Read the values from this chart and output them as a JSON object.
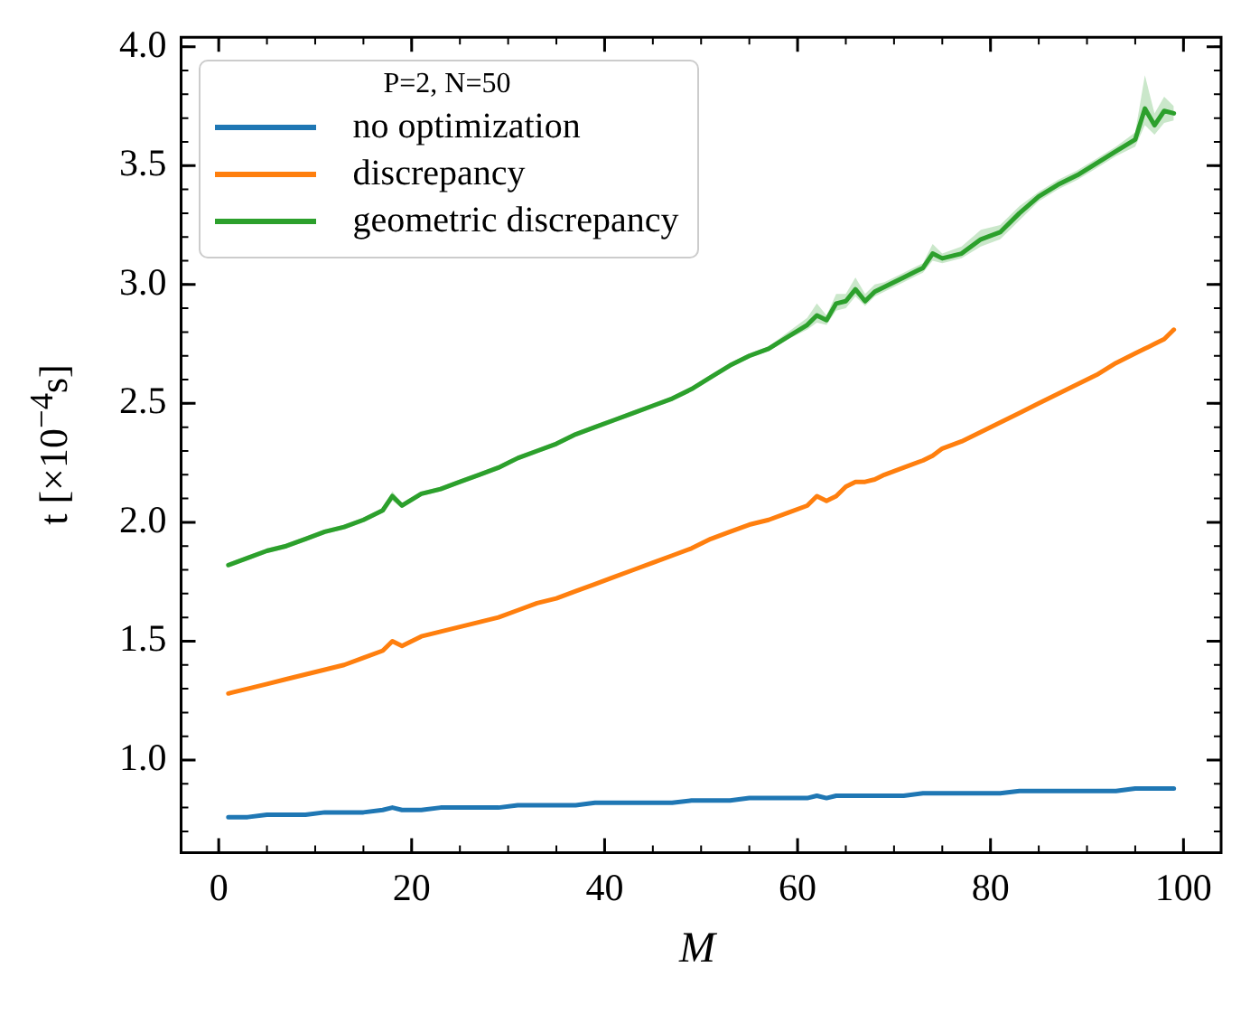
{
  "chart_data": {
    "type": "line",
    "xlabel": "M",
    "ylabel": "t [×10$^{−4}$s]",
    "legend_title": "P=2, N=50",
    "legend": "top left",
    "grid": false,
    "marker": "none",
    "line_style": "solid",
    "xlim": [
      -3.9,
      103.9
    ],
    "xticks": [
      0,
      20,
      40,
      60,
      80,
      100
    ],
    "ylim": [
      0.61,
      4.04
    ],
    "yticks": [
      {
        "value": 1,
        "label": "1.0"
      },
      {
        "value": 1.5,
        "label": "1.5"
      },
      {
        "value": 2,
        "label": "2.0"
      },
      {
        "value": 2.5,
        "label": "2.5"
      },
      {
        "value": 3,
        "label": "3.0"
      },
      {
        "value": 3.5,
        "label": "3.5"
      },
      {
        "value": 4,
        "label": "4.0"
      }
    ],
    "x": [
      1,
      3,
      5,
      7,
      9,
      11,
      13,
      15,
      17,
      18,
      19,
      21,
      23,
      25,
      27,
      29,
      31,
      33,
      35,
      37,
      39,
      41,
      43,
      45,
      47,
      49,
      51,
      53,
      55,
      57,
      59,
      61,
      62,
      63,
      64,
      65,
      66,
      67,
      68,
      69,
      71,
      73,
      74,
      75,
      77,
      79,
      81,
      83,
      85,
      87,
      89,
      91,
      93,
      95,
      96,
      97,
      98,
      99
    ],
    "series": [
      {
        "name": "no optimization",
        "color": "#1f77b4",
        "values": [
          0.76,
          0.76,
          0.77,
          0.77,
          0.77,
          0.78,
          0.78,
          0.78,
          0.79,
          0.8,
          0.79,
          0.79,
          0.8,
          0.8,
          0.8,
          0.8,
          0.81,
          0.81,
          0.81,
          0.81,
          0.82,
          0.82,
          0.82,
          0.82,
          0.82,
          0.83,
          0.83,
          0.83,
          0.84,
          0.84,
          0.84,
          0.84,
          0.85,
          0.84,
          0.85,
          0.85,
          0.85,
          0.85,
          0.85,
          0.85,
          0.85,
          0.86,
          0.86,
          0.86,
          0.86,
          0.86,
          0.86,
          0.87,
          0.87,
          0.87,
          0.87,
          0.87,
          0.87,
          0.88,
          0.88,
          0.88,
          0.88,
          0.88
        ]
      },
      {
        "name": "discrepancy",
        "color": "#ff7f0e",
        "values": [
          1.28,
          1.3,
          1.32,
          1.34,
          1.36,
          1.38,
          1.4,
          1.43,
          1.46,
          1.5,
          1.48,
          1.52,
          1.54,
          1.56,
          1.58,
          1.6,
          1.63,
          1.66,
          1.68,
          1.71,
          1.74,
          1.77,
          1.8,
          1.83,
          1.86,
          1.89,
          1.93,
          1.96,
          1.99,
          2.01,
          2.04,
          2.07,
          2.11,
          2.09,
          2.11,
          2.15,
          2.17,
          2.17,
          2.18,
          2.2,
          2.23,
          2.26,
          2.28,
          2.31,
          2.34,
          2.38,
          2.42,
          2.46,
          2.5,
          2.54,
          2.58,
          2.62,
          2.67,
          2.71,
          2.73,
          2.75,
          2.77,
          2.81
        ]
      },
      {
        "name": "geometric discrepancy",
        "color": "#2ca02c",
        "values": [
          1.82,
          1.85,
          1.88,
          1.9,
          1.93,
          1.96,
          1.98,
          2.01,
          2.05,
          2.11,
          2.07,
          2.12,
          2.14,
          2.17,
          2.2,
          2.23,
          2.27,
          2.3,
          2.33,
          2.37,
          2.4,
          2.43,
          2.46,
          2.49,
          2.52,
          2.56,
          2.61,
          2.66,
          2.7,
          2.73,
          2.78,
          2.83,
          2.87,
          2.85,
          2.92,
          2.93,
          2.98,
          2.93,
          2.97,
          2.99,
          3.03,
          3.07,
          3.13,
          3.11,
          3.13,
          3.19,
          3.22,
          3.3,
          3.37,
          3.42,
          3.46,
          3.51,
          3.56,
          3.61,
          3.74,
          3.67,
          3.73,
          3.72
        ],
        "lower": [
          1.81,
          1.84,
          1.87,
          1.89,
          1.92,
          1.95,
          1.97,
          2.0,
          2.04,
          2.09,
          2.06,
          2.11,
          2.13,
          2.16,
          2.19,
          2.22,
          2.26,
          2.29,
          2.32,
          2.36,
          2.39,
          2.42,
          2.45,
          2.48,
          2.51,
          2.55,
          2.6,
          2.65,
          2.69,
          2.72,
          2.77,
          2.81,
          2.84,
          2.83,
          2.89,
          2.9,
          2.95,
          2.91,
          2.95,
          2.97,
          3.01,
          3.05,
          3.1,
          3.09,
          3.11,
          3.16,
          3.19,
          3.27,
          3.35,
          3.4,
          3.44,
          3.49,
          3.54,
          3.58,
          3.67,
          3.63,
          3.68,
          3.69
        ],
        "upper": [
          1.83,
          1.86,
          1.89,
          1.91,
          1.94,
          1.97,
          1.99,
          2.02,
          2.06,
          2.13,
          2.08,
          2.13,
          2.15,
          2.18,
          2.21,
          2.24,
          2.28,
          2.31,
          2.34,
          2.38,
          2.41,
          2.44,
          2.47,
          2.5,
          2.53,
          2.57,
          2.62,
          2.67,
          2.71,
          2.74,
          2.8,
          2.86,
          2.92,
          2.87,
          2.96,
          2.96,
          3.03,
          2.96,
          3.0,
          3.01,
          3.05,
          3.09,
          3.17,
          3.13,
          3.16,
          3.23,
          3.25,
          3.33,
          3.39,
          3.44,
          3.48,
          3.53,
          3.58,
          3.64,
          3.88,
          3.72,
          3.79,
          3.75
        ]
      }
    ]
  }
}
